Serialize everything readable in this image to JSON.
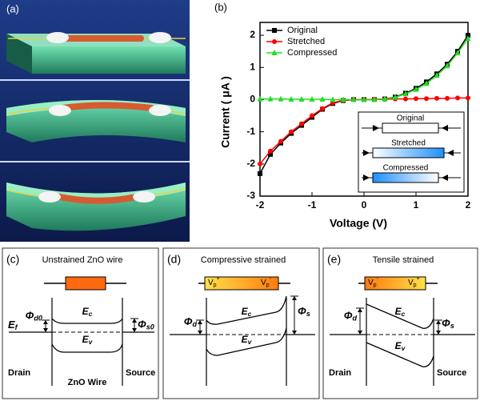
{
  "panel_labels": [
    "(a)",
    "(b)",
    "(c)",
    "(d)",
    "(e)"
  ],
  "chart_data": {
    "type": "line",
    "x_label": "Voltage (V)",
    "y_label": "Current ( μA )",
    "x": [
      -2,
      -1.8,
      -1.6,
      -1.4,
      -1.2,
      -1,
      -0.8,
      -0.6,
      -0.4,
      -0.2,
      0,
      0.2,
      0.4,
      0.6,
      0.8,
      1,
      1.2,
      1.4,
      1.6,
      1.8,
      2
    ],
    "series": [
      {
        "name": "Original",
        "color": "#000000",
        "marker": "square",
        "values": [
          -2.3,
          -1.7,
          -1.35,
          -1.05,
          -0.8,
          -0.55,
          -0.3,
          -0.12,
          -0.03,
          0,
          0,
          0,
          0.02,
          0.08,
          0.2,
          0.35,
          0.55,
          0.8,
          1.1,
          1.5,
          2.0
        ]
      },
      {
        "name": "Stretched",
        "color": "#ff0000",
        "marker": "circle",
        "values": [
          -2.0,
          -1.6,
          -1.3,
          -1.0,
          -0.75,
          -0.5,
          -0.28,
          -0.1,
          -0.02,
          0,
          0,
          0.01,
          0.01,
          0.02,
          0.02,
          0.03,
          0.03,
          0.04,
          0.04,
          0.05,
          0.05
        ]
      },
      {
        "name": "Compressed",
        "color": "#22dd22",
        "marker": "triangle",
        "values": [
          0.02,
          0.02,
          0.02,
          0.01,
          0.01,
          0.01,
          0.01,
          0,
          0,
          0,
          0,
          0,
          0.02,
          0.07,
          0.18,
          0.32,
          0.5,
          0.75,
          1.05,
          1.45,
          1.9
        ]
      }
    ],
    "xlim": [
      -2,
      2
    ],
    "xticks": [
      -2,
      -1,
      0,
      1,
      2
    ],
    "ylim": [
      -3,
      2.4
    ],
    "yticks": [
      -3,
      -2,
      -1,
      0,
      1,
      2
    ],
    "legend": "upper left",
    "inset_labels": [
      "Original",
      "Stretched",
      "Compressed"
    ]
  },
  "bands": [
    {
      "title": "Unstrained ZnO wire",
      "bar": [],
      "phi_d": {
        "main": "Φ",
        "sub": "d0"
      },
      "phi_s": {
        "main": "Φ",
        "sub": "s0"
      },
      "fermi": {
        "main": "E",
        "sub": "f"
      },
      "ec": {
        "main": "E",
        "sub": "c"
      },
      "ev": {
        "main": "E",
        "sub": "v"
      },
      "drain": "Drain",
      "source": "Source",
      "wire": "ZnO Wire"
    },
    {
      "title": "Compressive strained",
      "bar": [
        {
          "main": "V",
          "sub": "p",
          "sup": "+"
        },
        {
          "main": "V",
          "sub": "p",
          "sup": "-"
        }
      ],
      "phi_d": {
        "main": "Φ",
        "sub": "d"
      },
      "phi_s": {
        "main": "Φ",
        "sub": "s"
      },
      "ec": {
        "main": "E",
        "sub": "c"
      },
      "ev": {
        "main": "E",
        "sub": "v"
      }
    },
    {
      "title": "Tensile strained",
      "bar": [
        {
          "main": "V",
          "sub": "p",
          "sup": "-"
        },
        {
          "main": "V",
          "sub": "p",
          "sup": "+"
        }
      ],
      "phi_d": {
        "main": "Φ",
        "sub": "d"
      },
      "phi_s": {
        "main": "Φ",
        "sub": "s"
      },
      "ec": {
        "main": "E",
        "sub": "c"
      },
      "ev": {
        "main": "E",
        "sub": "v"
      },
      "drain": "Drain",
      "source": "Source"
    }
  ]
}
